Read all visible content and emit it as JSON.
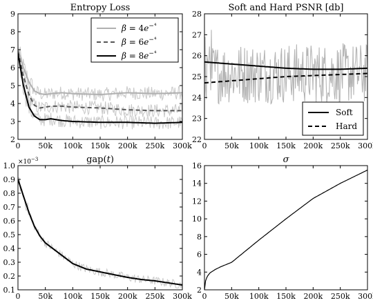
{
  "chart_data": [
    {
      "type": "line",
      "title": "Entropy Loss",
      "xlim": [
        0,
        300000
      ],
      "ylim": [
        2,
        9
      ],
      "x_ticks": [
        0,
        50000,
        100000,
        150000,
        200000,
        250000,
        300000
      ],
      "x_tick_labels": [
        "0",
        "50k",
        "100k",
        "150k",
        "200k",
        "250k",
        "300k"
      ],
      "y_ticks": [
        2,
        3,
        4,
        5,
        6,
        7,
        8,
        9
      ],
      "y_tick_labels": [
        "2",
        "3",
        "4",
        "5",
        "6",
        "7",
        "8",
        "9"
      ],
      "grid": false,
      "legend_placement": "top-right",
      "series": [
        {
          "name": "β = 4e⁻⁴",
          "color": "#b0b0b0",
          "dash": "solid",
          "noisy_raw": true,
          "x": [
            0,
            10000,
            20000,
            30000,
            40000,
            50000,
            60000,
            80000,
            100000,
            150000,
            200000,
            250000,
            300000
          ],
          "values": [
            7.0,
            6.0,
            5.2,
            4.7,
            4.55,
            4.5,
            4.55,
            4.6,
            4.55,
            4.5,
            4.6,
            4.55,
            4.6
          ]
        },
        {
          "name": "β = 6e⁻⁴",
          "color": "#555555",
          "dash": "dashed",
          "noisy_raw": true,
          "x": [
            0,
            10000,
            20000,
            30000,
            40000,
            50000,
            60000,
            80000,
            100000,
            150000,
            200000,
            250000,
            300000
          ],
          "values": [
            6.9,
            5.5,
            4.5,
            3.9,
            3.75,
            3.8,
            3.85,
            3.85,
            3.8,
            3.75,
            3.65,
            3.6,
            3.6
          ]
        },
        {
          "name": "β = 8e⁻⁴",
          "color": "#000000",
          "dash": "solid",
          "noisy_raw": true,
          "x": [
            0,
            10000,
            20000,
            30000,
            40000,
            50000,
            60000,
            80000,
            100000,
            150000,
            200000,
            250000,
            300000
          ],
          "values": [
            6.8,
            5.0,
            3.8,
            3.3,
            3.1,
            3.1,
            3.15,
            3.05,
            3.0,
            2.95,
            2.95,
            2.9,
            2.95
          ]
        }
      ]
    },
    {
      "type": "line",
      "title": "Soft and Hard PSNR [db]",
      "xlim": [
        0,
        300000
      ],
      "ylim": [
        22,
        28
      ],
      "x_ticks": [
        0,
        50000,
        100000,
        150000,
        200000,
        250000,
        300000
      ],
      "x_tick_labels": [
        "0",
        "50k",
        "100k",
        "150k",
        "200k",
        "250k",
        "300k"
      ],
      "y_ticks": [
        22,
        23,
        24,
        25,
        26,
        27,
        28
      ],
      "y_tick_labels": [
        "22",
        "23",
        "24",
        "25",
        "26",
        "27",
        "28"
      ],
      "grid": false,
      "legend_placement": "bottom-right",
      "raw_band": [
        23.7,
        26.6
      ],
      "series": [
        {
          "name": "Soft",
          "color": "#000000",
          "dash": "solid",
          "x": [
            0,
            50000,
            100000,
            150000,
            200000,
            250000,
            300000
          ],
          "values": [
            25.7,
            25.6,
            25.5,
            25.4,
            25.35,
            25.35,
            25.4
          ]
        },
        {
          "name": "Hard",
          "color": "#000000",
          "dash": "dashed",
          "x": [
            0,
            50000,
            100000,
            150000,
            200000,
            250000,
            300000
          ],
          "values": [
            24.7,
            24.8,
            24.9,
            25.0,
            25.05,
            25.1,
            25.15
          ]
        }
      ]
    },
    {
      "type": "line",
      "title": "gap(t)",
      "scale_label": "×10⁻³",
      "xlim": [
        0,
        300000
      ],
      "ylim": [
        0.1,
        1.0
      ],
      "x_ticks": [
        0,
        50000,
        100000,
        150000,
        200000,
        250000,
        300000
      ],
      "x_tick_labels": [
        "0",
        "50k",
        "100k",
        "150k",
        "200k",
        "250k",
        "300k"
      ],
      "y_ticks": [
        0.1,
        0.2,
        0.3,
        0.4,
        0.5,
        0.6,
        0.7,
        0.8,
        0.9,
        1.0
      ],
      "y_tick_labels": [
        "0.1",
        "0.2",
        "0.3",
        "0.4",
        "0.5",
        "0.6",
        "0.7",
        "0.8",
        "0.9",
        "1.0"
      ],
      "grid": false,
      "series": [
        {
          "color": "#000000",
          "dash": "solid",
          "noisy_raw": true,
          "x": [
            0,
            10000,
            20000,
            30000,
            40000,
            50000,
            60000,
            70000,
            80000,
            90000,
            100000,
            125000,
            150000,
            175000,
            200000,
            225000,
            250000,
            275000,
            300000
          ],
          "values": [
            0.9,
            0.78,
            0.66,
            0.56,
            0.49,
            0.44,
            0.41,
            0.38,
            0.35,
            0.32,
            0.29,
            0.25,
            0.23,
            0.21,
            0.19,
            0.175,
            0.165,
            0.15,
            0.135
          ]
        }
      ]
    },
    {
      "type": "line",
      "title": "σ",
      "xlim": [
        0,
        300000
      ],
      "ylim": [
        2,
        16
      ],
      "x_ticks": [
        0,
        50000,
        100000,
        150000,
        200000,
        250000,
        300000
      ],
      "x_tick_labels": [
        "0",
        "50k",
        "100k",
        "150k",
        "200k",
        "250k",
        "300k"
      ],
      "y_ticks": [
        2,
        4,
        6,
        8,
        10,
        12,
        14,
        16
      ],
      "y_tick_labels": [
        "2",
        "4",
        "6",
        "8",
        "10",
        "12",
        "14",
        "16"
      ],
      "grid": false,
      "series": [
        {
          "color": "#000000",
          "dash": "solid",
          "x": [
            0,
            2000,
            5000,
            10000,
            20000,
            30000,
            50000,
            100000,
            150000,
            200000,
            250000,
            300000
          ],
          "values": [
            2.0,
            3.0,
            3.5,
            3.9,
            4.3,
            4.6,
            5.1,
            7.6,
            10.0,
            12.3,
            14.0,
            15.5
          ]
        }
      ]
    }
  ]
}
